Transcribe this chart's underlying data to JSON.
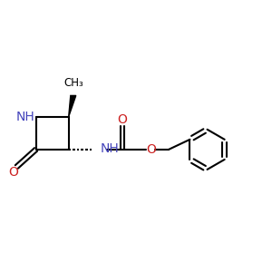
{
  "bg_color": "#ffffff",
  "bond_color": "#000000",
  "N_color": "#4444bb",
  "O_color": "#cc2222",
  "line_width": 1.5,
  "font_size": 10,
  "figsize": [
    3.0,
    3.0
  ],
  "dpi": 100,
  "xlim": [
    -2.0,
    5.0
  ],
  "ylim": [
    -2.5,
    2.5
  ]
}
